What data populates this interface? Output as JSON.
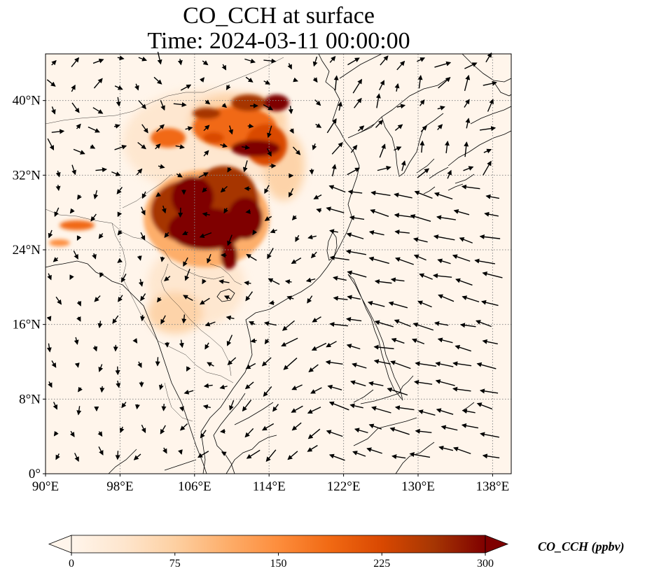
{
  "title_line1": "CO_CCH at surface",
  "title_line2": "Time: 2024-03-11 00:00:00",
  "map": {
    "lon_range": [
      90,
      140
    ],
    "lat_range": [
      0,
      45
    ],
    "lon_ticks": [
      90,
      98,
      106,
      114,
      122,
      130,
      138
    ],
    "lat_ticks": [
      0,
      8,
      16,
      24,
      32,
      40
    ],
    "lon_tick_labels": [
      "90°E",
      "98°E",
      "106°E",
      "114°E",
      "122°E",
      "130°E",
      "138°E"
    ],
    "lat_tick_labels": [
      "0°",
      "8°N",
      "16°N",
      "24°N",
      "32°N",
      "40°N"
    ],
    "gridlines": true,
    "vector_field": "wind arrows",
    "background_color": "#fff5eb"
  },
  "colorbar": {
    "label": "CO_CCH (ppbv)",
    "min": 0,
    "max": 300,
    "ticks": [
      0,
      75,
      150,
      225,
      300
    ],
    "tick_labels": [
      "0",
      "75",
      "150",
      "225",
      "300"
    ],
    "extend": "both",
    "colormap": [
      "#fff5eb",
      "#fee6ce",
      "#fdd0a2",
      "#fdae6b",
      "#fd8d3c",
      "#f16913",
      "#d94801",
      "#a63603",
      "#7f0000"
    ]
  }
}
